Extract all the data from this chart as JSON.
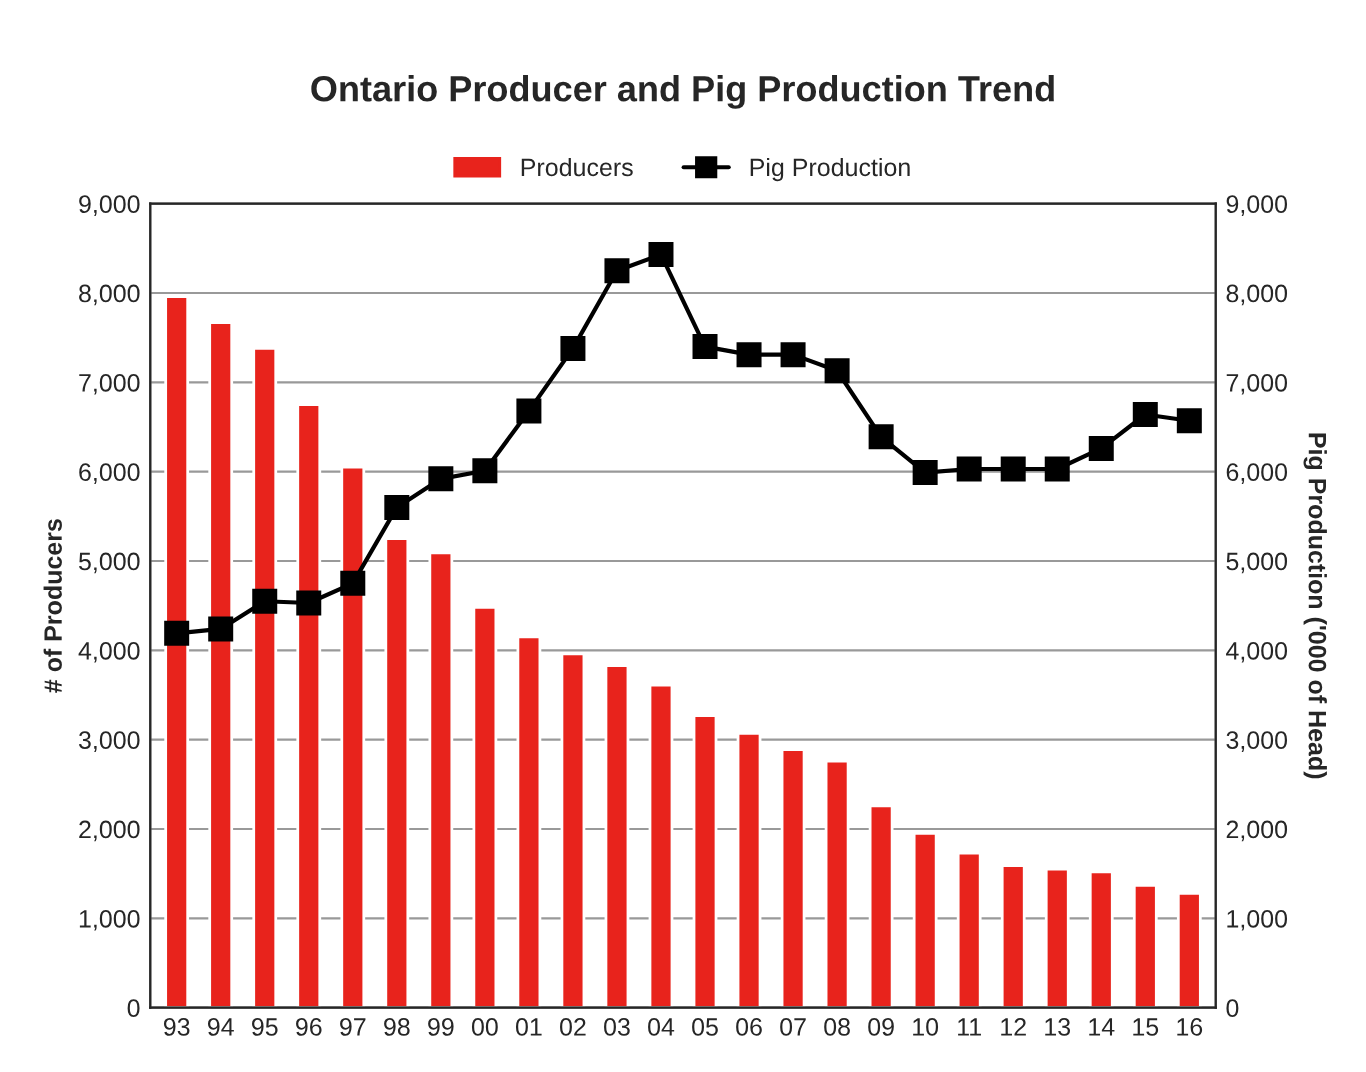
{
  "chart_data": {
    "type": "bar",
    "title": "Ontario Producer and Pig Production Trend",
    "ylabel": "# of Producers",
    "y2label": "Pig Production ('000 of Head)",
    "categories": [
      "93",
      "94",
      "95",
      "96",
      "97",
      "98",
      "99",
      "00",
      "01",
      "02",
      "03",
      "04",
      "05",
      "06",
      "07",
      "08",
      "09",
      "10",
      "11",
      "12",
      "13",
      "14",
      "15",
      "16"
    ],
    "series": [
      {
        "name": "Producers",
        "color": "#e8231c",
        "values": [
          7960,
          7670,
          7380,
          6750,
          6050,
          5250,
          5090,
          4480,
          4150,
          3960,
          3830,
          3610,
          3270,
          3070,
          2890,
          2760,
          2260,
          1950,
          1730,
          1590,
          1550,
          1520,
          1370,
          1280
        ]
      },
      {
        "name": "Pig Production",
        "type": "line",
        "axis": "y2",
        "color": "#000000",
        "marker": "square",
        "values": [
          4190,
          4240,
          4550,
          4530,
          4750,
          5600,
          5920,
          6010,
          6680,
          7380,
          8250,
          8430,
          7400,
          7310,
          7310,
          7130,
          6390,
          5990,
          6030,
          6030,
          6030,
          6260,
          6640,
          6570
        ]
      }
    ],
    "ylim": [
      0,
      9000
    ],
    "yticks": [
      {
        "value": 0,
        "label": "0"
      },
      {
        "value": 1000,
        "label": "1,000"
      },
      {
        "value": 2000,
        "label": "2,000"
      },
      {
        "value": 3000,
        "label": "3,000"
      },
      {
        "value": 4000,
        "label": "4,000"
      },
      {
        "value": 5000,
        "label": "5,000"
      },
      {
        "value": 6000,
        "label": "6,000"
      },
      {
        "value": 7000,
        "label": "7,000"
      },
      {
        "value": 8000,
        "label": "8,000"
      },
      {
        "value": 9000,
        "label": "9,000"
      }
    ],
    "y2lim": [
      0,
      9000
    ],
    "y2ticks": [
      {
        "value": 0,
        "label": "0"
      },
      {
        "value": 1000,
        "label": "1,000"
      },
      {
        "value": 2000,
        "label": "2,000"
      },
      {
        "value": 3000,
        "label": "3,000"
      },
      {
        "value": 4000,
        "label": "4,000"
      },
      {
        "value": 5000,
        "label": "5,000"
      },
      {
        "value": 6000,
        "label": "6,000"
      },
      {
        "value": 7000,
        "label": "7,000"
      },
      {
        "value": 8000,
        "label": "8,000"
      },
      {
        "value": 9000,
        "label": "9,000"
      }
    ],
    "grid": "y",
    "legend": "top"
  }
}
